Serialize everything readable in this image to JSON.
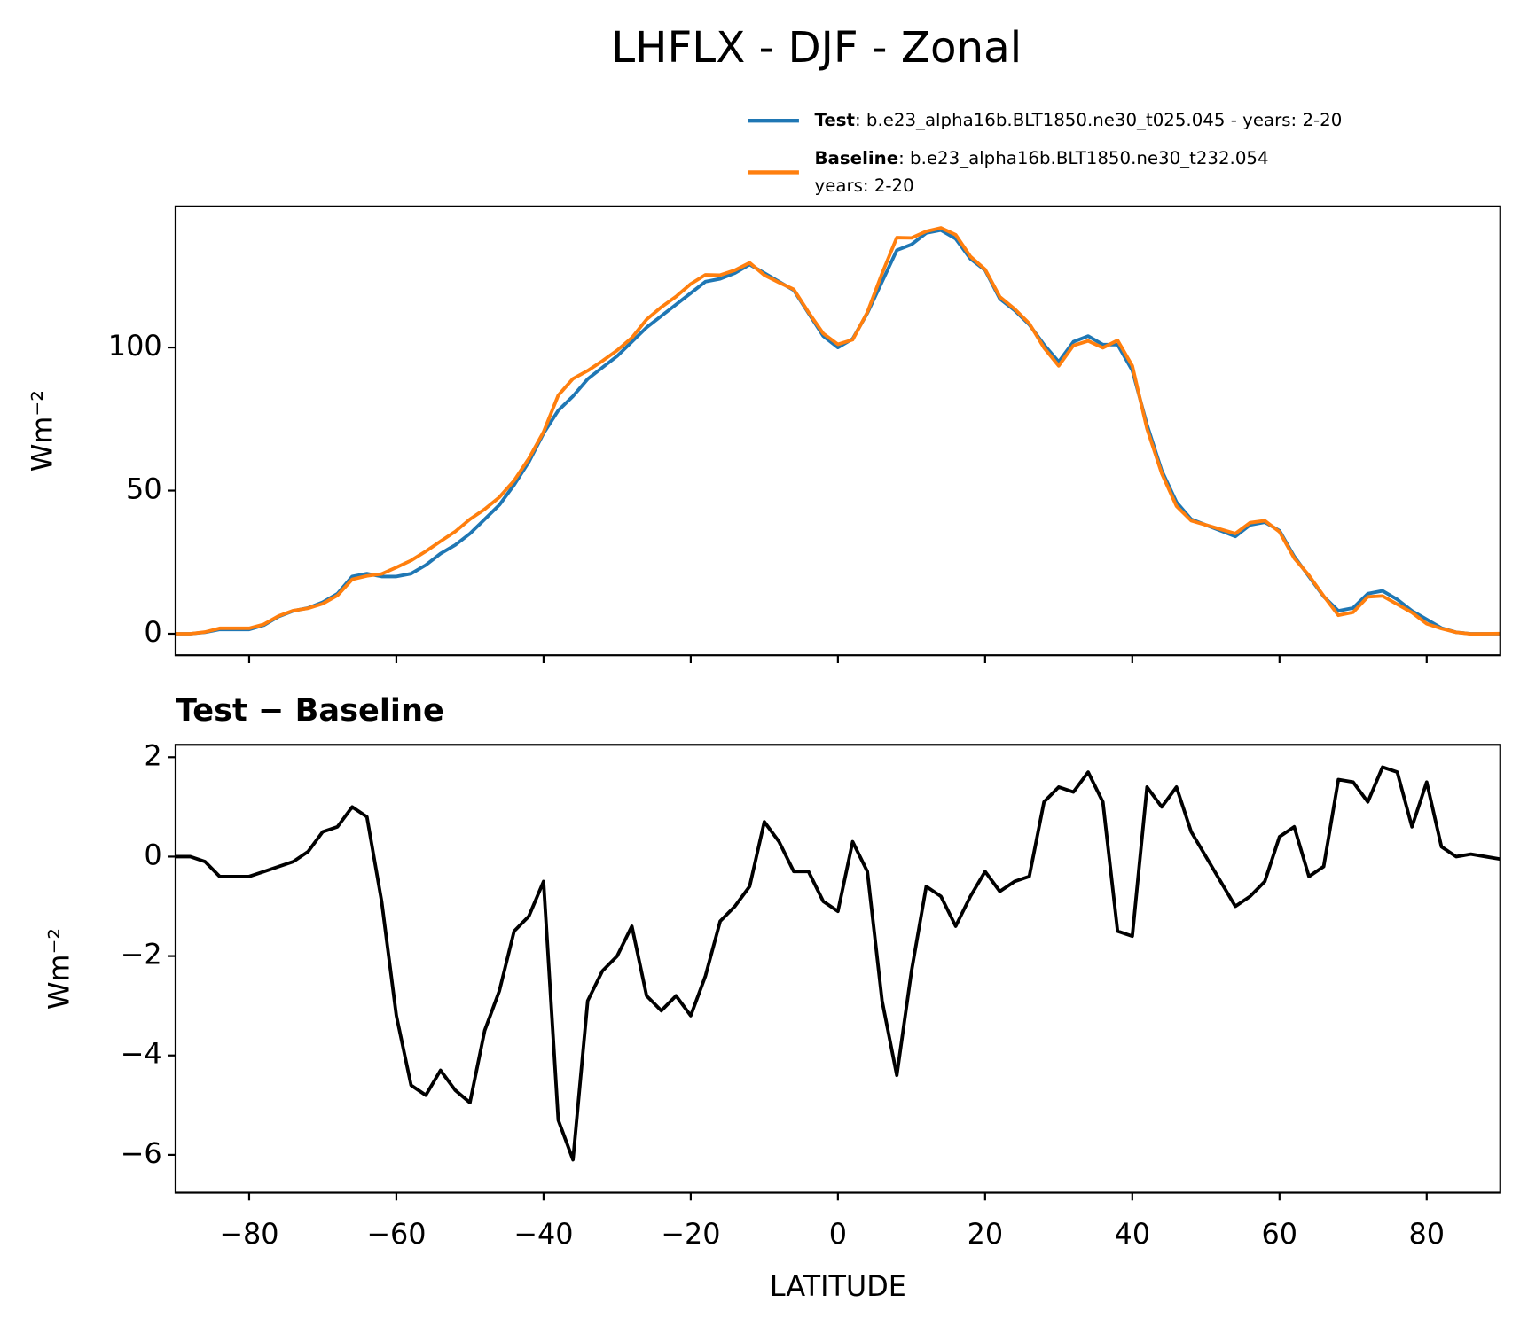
{
  "chart_data": [
    {
      "type": "line",
      "title": "LHFLX - DJF - Zonal",
      "ylabel": "Wm⁻²",
      "x": [
        -90,
        -88,
        -86,
        -84,
        -82,
        -80,
        -78,
        -76,
        -74,
        -72,
        -70,
        -68,
        -66,
        -64,
        -62,
        -60,
        -58,
        -56,
        -54,
        -52,
        -50,
        -48,
        -46,
        -44,
        -42,
        -40,
        -38,
        -36,
        -34,
        -32,
        -30,
        -28,
        -26,
        -24,
        -22,
        -20,
        -18,
        -16,
        -14,
        -12,
        -10,
        -8,
        -6,
        -4,
        -2,
        0,
        2,
        4,
        6,
        8,
        10,
        12,
        14,
        16,
        18,
        20,
        22,
        24,
        26,
        28,
        30,
        32,
        34,
        36,
        38,
        40,
        42,
        44,
        46,
        48,
        50,
        52,
        54,
        56,
        58,
        60,
        62,
        64,
        66,
        68,
        70,
        72,
        74,
        76,
        78,
        80,
        82,
        84,
        86,
        88,
        90
      ],
      "series": [
        {
          "name": "Test",
          "description": [
            ": b.e23_alpha16b.BLT1850.ne30_t025.045 - years: 2-20"
          ],
          "color": "#1f77b4",
          "values": [
            0,
            0,
            0.5,
            1.5,
            1.5,
            1.5,
            3,
            6,
            8,
            9,
            11,
            14,
            20,
            21,
            20,
            20,
            21,
            24,
            28,
            31,
            35,
            40,
            45,
            52,
            60,
            70,
            78,
            83,
            89,
            93,
            97,
            102,
            107,
            111,
            115,
            119,
            123,
            124,
            126,
            129,
            126,
            123,
            120,
            112,
            104,
            100,
            103,
            112,
            123,
            134,
            136,
            140,
            141,
            138,
            131,
            127,
            117,
            113,
            108,
            101,
            95,
            102,
            104,
            101,
            101,
            92,
            73,
            57,
            46,
            40,
            38,
            36,
            34,
            38,
            39,
            36,
            27,
            20,
            13,
            8,
            9,
            14,
            15,
            12,
            8,
            5,
            2,
            0.5,
            0,
            0,
            0
          ]
        },
        {
          "name": "Baseline",
          "description": [
            ": b.e23_alpha16b.BLT1850.ne30_t232.054",
            "years: 2-20"
          ],
          "color": "#ff7f0e",
          "values": [
            0,
            0,
            0.6,
            1.9,
            1.9,
            1.9,
            3.3,
            6.2,
            8.1,
            8.9,
            10.5,
            13.4,
            19,
            20.2,
            20.9,
            23.2,
            25.6,
            28.8,
            32.3,
            35.7,
            40,
            43.5,
            47.7,
            53.5,
            61.2,
            70.5,
            83.3,
            89.1,
            91.9,
            95.3,
            99,
            103.4,
            109.8,
            114.1,
            117.8,
            122.2,
            125.4,
            125.3,
            127,
            129.6,
            125.3,
            122.7,
            120.3,
            112.3,
            104.9,
            101.1,
            102.7,
            112.3,
            125.9,
            138.4,
            138.3,
            140.6,
            141.8,
            139.4,
            131.8,
            127.3,
            117.7,
            113.5,
            108.4,
            99.9,
            93.6,
            100.7,
            102.3,
            99.9,
            102.5,
            93.6,
            71.6,
            56,
            44.6,
            39.5,
            38,
            36.5,
            35,
            38.8,
            39.5,
            35.6,
            26.4,
            20.4,
            13.2,
            6.45,
            7.5,
            12.9,
            13.2,
            10.3,
            7.4,
            3.5,
            1.8,
            0.5,
            -0.05,
            0,
            0.05
          ]
        }
      ],
      "xlim": [
        -90,
        90
      ],
      "xticks": [
        -80,
        -60,
        -40,
        -20,
        0,
        20,
        40,
        60,
        80
      ],
      "show_xtick_labels": false,
      "ylim": [
        -7.5,
        149.3
      ],
      "yticks": [
        0,
        50,
        100
      ]
    },
    {
      "type": "line",
      "title": "Test − Baseline",
      "ylabel": "Wm⁻²",
      "xlabel": "LATITUDE",
      "x": [
        -90,
        -88,
        -86,
        -84,
        -82,
        -80,
        -78,
        -76,
        -74,
        -72,
        -70,
        -68,
        -66,
        -64,
        -62,
        -60,
        -58,
        -56,
        -54,
        -52,
        -50,
        -48,
        -46,
        -44,
        -42,
        -40,
        -38,
        -36,
        -34,
        -32,
        -30,
        -28,
        -26,
        -24,
        -22,
        -20,
        -18,
        -16,
        -14,
        -12,
        -10,
        -8,
        -6,
        -4,
        -2,
        0,
        2,
        4,
        6,
        8,
        10,
        12,
        14,
        16,
        18,
        20,
        22,
        24,
        26,
        28,
        30,
        32,
        34,
        36,
        38,
        40,
        42,
        44,
        46,
        48,
        50,
        52,
        54,
        56,
        58,
        60,
        62,
        64,
        66,
        68,
        70,
        72,
        74,
        76,
        78,
        80,
        82,
        84,
        86,
        88,
        90
      ],
      "series": [
        {
          "name": "Test − Baseline",
          "color": "#000000",
          "values": [
            0,
            0,
            -0.1,
            -0.4,
            -0.4,
            -0.4,
            -0.3,
            -0.2,
            -0.1,
            0.1,
            0.5,
            0.6,
            1.0,
            0.8,
            -0.9,
            -3.2,
            -4.6,
            -4.8,
            -4.3,
            -4.7,
            -4.95,
            -3.5,
            -2.7,
            -1.5,
            -1.2,
            -0.5,
            -5.3,
            -6.1,
            -2.9,
            -2.3,
            -2.0,
            -1.4,
            -2.8,
            -3.1,
            -2.8,
            -3.2,
            -2.4,
            -1.3,
            -1.0,
            -0.6,
            0.7,
            0.3,
            -0.3,
            -0.3,
            -0.9,
            -1.1,
            0.3,
            -0.3,
            -2.9,
            -4.4,
            -2.3,
            -0.6,
            -0.8,
            -1.4,
            -0.8,
            -0.3,
            -0.7,
            -0.5,
            -0.4,
            1.1,
            1.4,
            1.3,
            1.7,
            1.1,
            -1.5,
            -1.6,
            1.4,
            1.0,
            1.4,
            0.5,
            0.0,
            -0.5,
            -1.0,
            -0.8,
            -0.5,
            0.4,
            0.6,
            -0.4,
            -0.2,
            1.55,
            1.5,
            1.1,
            1.8,
            1.7,
            0.6,
            1.5,
            0.2,
            0.0,
            0.05,
            0,
            -0.05
          ]
        }
      ],
      "xlim": [
        -90,
        90
      ],
      "xticks": [
        {
          "value": -80,
          "label": "−80"
        },
        {
          "value": -60,
          "label": "−60"
        },
        {
          "value": -40,
          "label": "−40"
        },
        {
          "value": -20,
          "label": "−20"
        },
        0,
        20,
        40,
        60,
        80
      ],
      "show_xtick_labels": true,
      "ylim": [
        -6.76,
        2.25
      ],
      "yticks": [
        2,
        0,
        {
          "value": -2,
          "label": "−2"
        },
        {
          "value": -4,
          "label": "−4"
        },
        {
          "value": -6,
          "label": "−6"
        }
      ]
    }
  ]
}
